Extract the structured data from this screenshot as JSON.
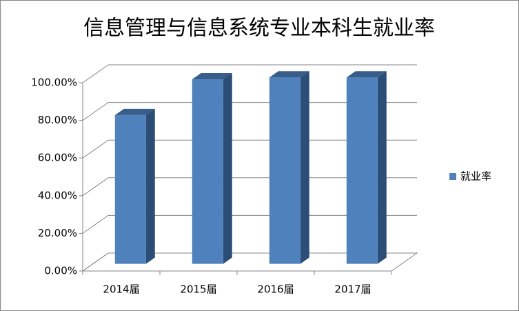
{
  "chart_data": {
    "type": "bar3d",
    "title": "信息管理与信息系统专业本科生就业率",
    "categories": [
      "2014届",
      "2015届",
      "2016届",
      "2017届"
    ],
    "series": [
      {
        "name": "就业率",
        "color": "#4f81bd",
        "values": [
          79,
          98,
          99,
          99
        ]
      }
    ],
    "ylim": [
      0,
      100
    ],
    "yticks": [
      {
        "value": 0,
        "label": "0.00%"
      },
      {
        "value": 20,
        "label": "20.00%"
      },
      {
        "value": 40,
        "label": "40.00%"
      },
      {
        "value": 60,
        "label": "60.00%"
      },
      {
        "value": 80,
        "label": "80.00%"
      },
      {
        "value": 100,
        "label": "100.00%"
      }
    ],
    "grid": true,
    "legend": "right"
  }
}
